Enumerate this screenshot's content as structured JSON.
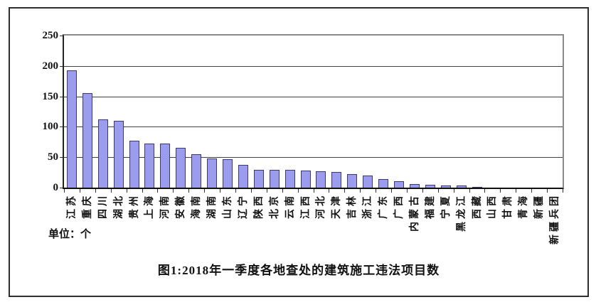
{
  "figure": {
    "title": "图1:2018年一季度各地查处的建筑施工违法项目数",
    "unit_label": "单位：个"
  },
  "chart_data": {
    "type": "bar",
    "title": "图1:2018年一季度各地查处的建筑施工违法项目数",
    "unit_label": "单位：个",
    "categories": [
      "江苏",
      "重庆",
      "四川",
      "湖北",
      "贵州",
      "上海",
      "河南",
      "安徽",
      "海南",
      "湖南",
      "山东",
      "辽宁",
      "陕西",
      "北京",
      "云南",
      "江西",
      "河北",
      "天津",
      "吉林",
      "浙江",
      "广东",
      "广西",
      "内蒙古",
      "福建",
      "宁夏",
      "黑龙江",
      "西藏",
      "山西",
      "甘肃",
      "青海",
      "新疆",
      "新疆兵团"
    ],
    "values": [
      193,
      155,
      112,
      110,
      77,
      72,
      72,
      66,
      55,
      48,
      47,
      37,
      29,
      29,
      29,
      28,
      27,
      26,
      22,
      20,
      14,
      10,
      6,
      5,
      4,
      3,
      1,
      0,
      0,
      0,
      0,
      0
    ],
    "xlabel": "",
    "ylabel": "",
    "ylim": [
      0,
      250
    ],
    "yticks": [
      0,
      50,
      100,
      150,
      200,
      250
    ],
    "grid": "horizontal",
    "legend": "none",
    "colors": {
      "bar_fill": "#9c9cee",
      "bar_border": "#3a3a70",
      "gridline": "#3f3f3f",
      "axis": "#222222",
      "plot_border": "#8a8a8a",
      "frame_border": "#2e2e2e",
      "text": "#111111"
    }
  }
}
